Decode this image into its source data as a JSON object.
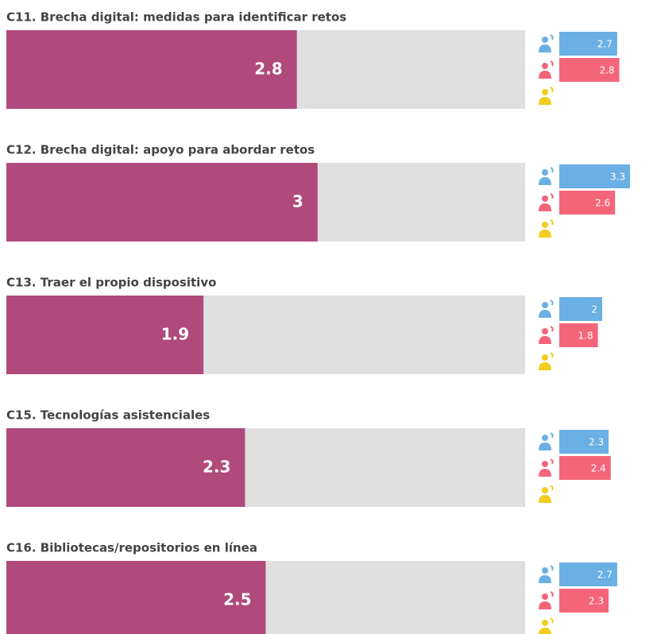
{
  "chart_data": {
    "type": "bar",
    "categories": [
      "C11. Brecha digital: medidas para identificar retos",
      "C12. Brecha digital: apoyo para abordar retos",
      "C13. Traer el propio dispositivo",
      "C15. Tecnologías asistenciales",
      "C16. Bibliotecas/repositorios en línea"
    ],
    "values": [
      2.8,
      3,
      1.9,
      2.3,
      2.5
    ],
    "color": "#b04a7c",
    "xlim": [
      0,
      5
    ],
    "series": [
      {
        "color": "#6ab0e4",
        "values": [
          2.7,
          3.3,
          2,
          2.3,
          2.7
        ]
      },
      {
        "color": "#f4657a",
        "values": [
          2.8,
          2.6,
          1.8,
          2.4,
          2.3
        ]
      },
      {
        "color": "#f2cc1e",
        "values": [
          null,
          null,
          null,
          null,
          null
        ]
      }
    ]
  }
}
